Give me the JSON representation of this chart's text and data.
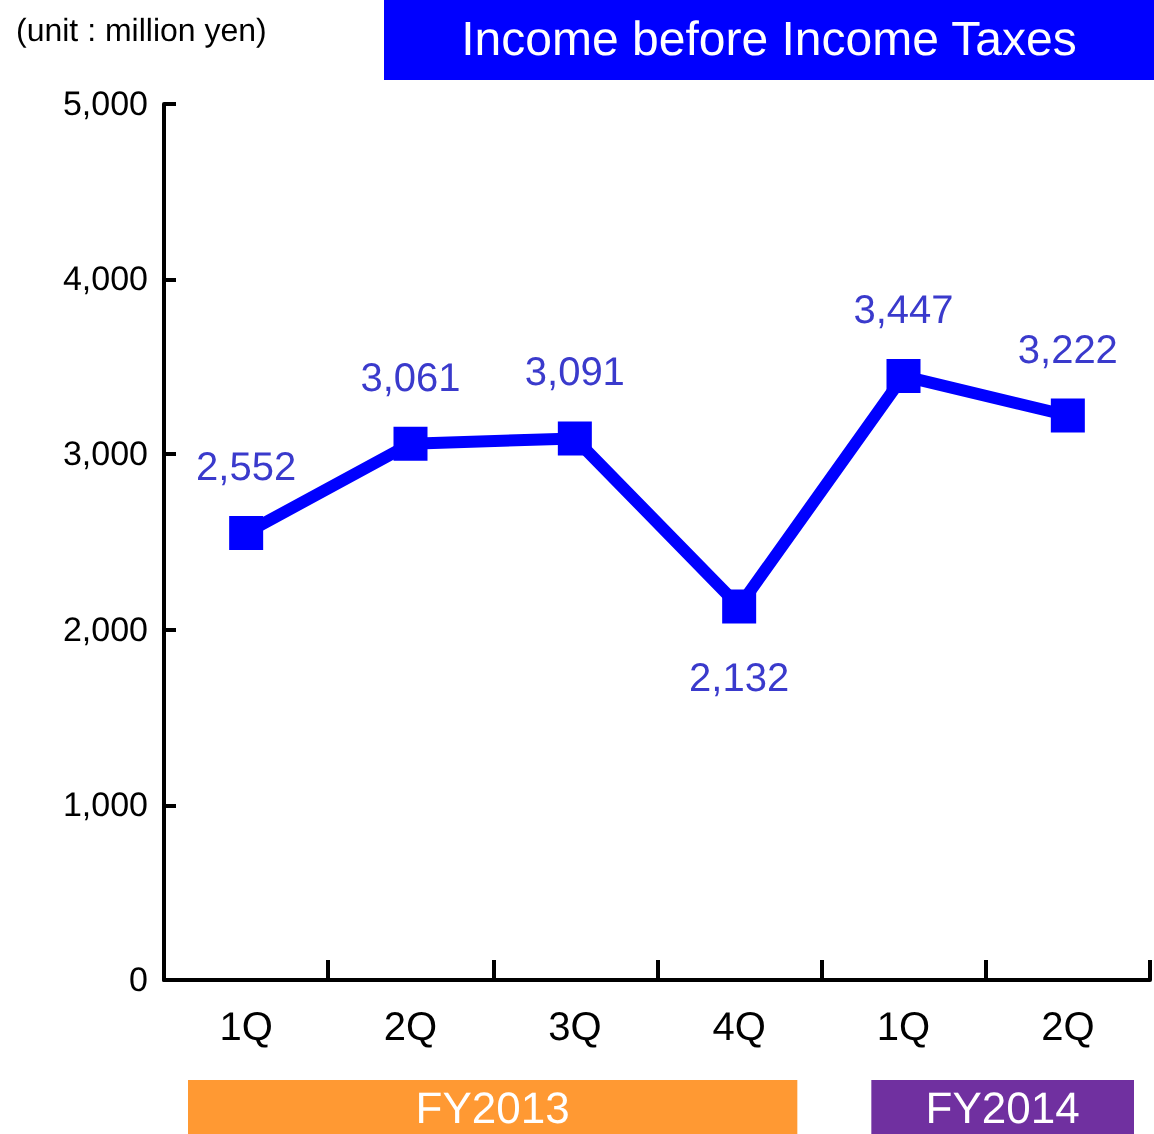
{
  "chart_data": {
    "type": "line",
    "title": "Income before Income Taxes",
    "annotations": [
      "(unit : million yen)",
      "FY2013",
      "FY2014"
    ],
    "categories": [
      "1Q",
      "2Q",
      "3Q",
      "4Q",
      "1Q",
      "2Q"
    ],
    "series": [
      {
        "color": "#0000ff",
        "values": [
          2552,
          3061,
          3091,
          2132,
          3447,
          3222
        ],
        "value_labels": [
          "2,552",
          "3,061",
          "3,091",
          "2,132",
          "3,447",
          "3,222"
        ]
      }
    ],
    "ylim": [
      0,
      5000
    ],
    "yticks": [
      0,
      {
        "value": 1000,
        "label": "1,000"
      },
      {
        "value": 2000,
        "label": "2,000"
      },
      {
        "value": 3000,
        "label": "3,000"
      },
      {
        "value": 4000,
        "label": "4,000"
      },
      {
        "value": 5000,
        "label": "5,000"
      }
    ],
    "grid": false,
    "marker": "square",
    "line_style": "solid"
  }
}
